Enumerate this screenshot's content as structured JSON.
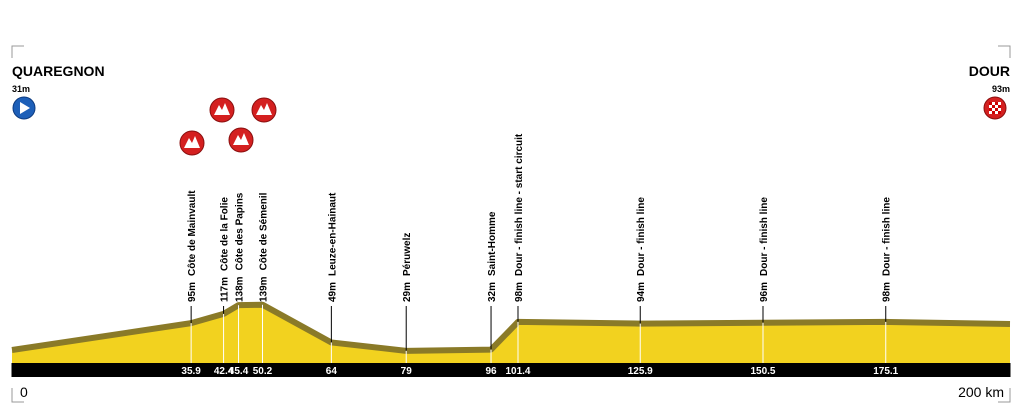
{
  "chart_data": {
    "type": "profile",
    "start": {
      "name": "QUAREGNON",
      "elevation": 31,
      "elevation_label": "31m"
    },
    "end": {
      "name": "DOUR",
      "elevation": 93,
      "elevation_label": "93m"
    },
    "x": [
      35.9,
      42.4,
      45.4,
      50.2,
      64,
      79,
      96,
      101.4,
      125.9,
      150.5,
      175.1
    ],
    "names": [
      "Côte de Mainvault",
      "Côte de la Folie",
      "Côte des Papins",
      "Côte de Sémenil",
      "Leuze-en-Hainaut",
      "Péruwelz",
      "Saint-Homme",
      "Dour - finish line - start circuit",
      "Dour - finish line",
      "Dour - finish line",
      "Dour - finish line"
    ],
    "values": [
      95,
      117,
      138,
      139,
      49,
      29,
      32,
      98,
      94,
      96,
      98
    ],
    "value_labels": [
      "95m",
      "117m",
      "138m",
      "139m",
      "49m",
      "29m",
      "32m",
      "98m",
      "94m",
      "96m",
      "98m"
    ],
    "xlim": [
      0,
      200
    ],
    "xticks": [
      0,
      {
        "value": 200,
        "label": "200 km"
      }
    ],
    "ylim": [
      0,
      770
    ],
    "color": "#f2d21f"
  }
}
